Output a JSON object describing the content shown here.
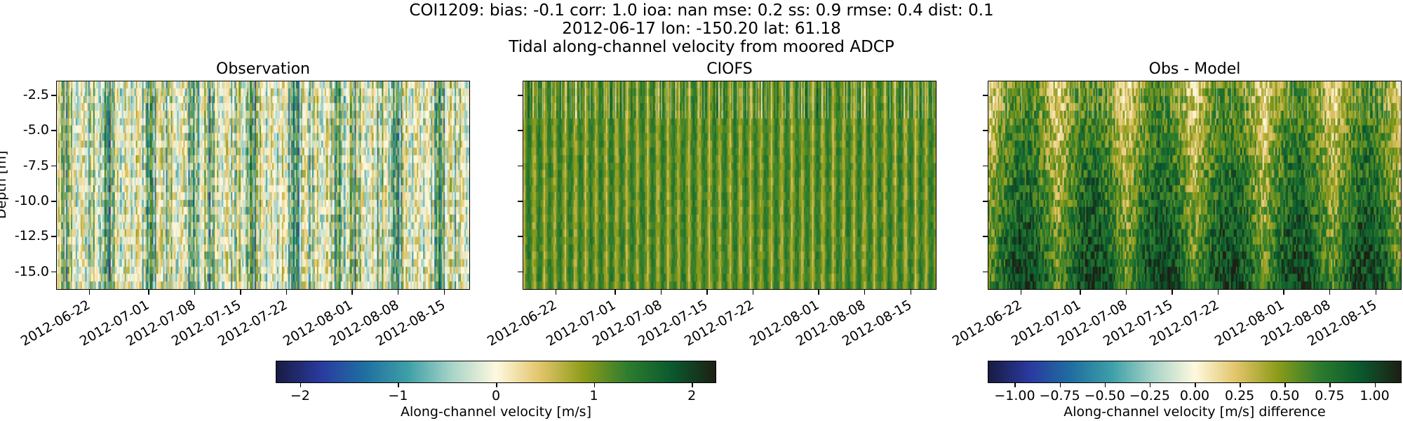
{
  "suptitle": {
    "line1": "COI1209: bias: -0.1  corr: 1.0  ioa: nan  mse: 0.2  ss: 0.9  rmse: 0.4  dist: 0.1",
    "line2": "2012-06-17 lon: -150.20 lat: 61.18",
    "line3": "Tidal along-channel velocity from moored ADCP"
  },
  "colors": {
    "colormap": [
      "#181c43",
      "#2a3aa0",
      "#1f6fa0",
      "#3fa0a8",
      "#a8d4c8",
      "#fff9e0",
      "#e2c56a",
      "#8e9c1a",
      "#2e7d2e",
      "#0a5a2e",
      "#1d2014"
    ]
  },
  "chart_data": [
    {
      "type": "heatmap",
      "title": "Observation",
      "ylabel": "Depth [m]",
      "yticks": [
        "-2.5",
        "-5.0",
        "-7.5",
        "-10.0",
        "-12.5",
        "-15.0"
      ],
      "ylim": [
        -16.3,
        -1.5
      ],
      "xticks": [
        "2012-06-22",
        "2012-07-01",
        "2012-07-08",
        "2012-07-15",
        "2012-07-22",
        "2012-08-01",
        "2012-08-08",
        "2012-08-15"
      ],
      "xlim": [
        "2012-06-17",
        "2012-08-19"
      ],
      "vlim": [
        -2.25,
        2.25
      ],
      "pattern": "tidal-bands"
    },
    {
      "type": "heatmap",
      "title": "CIOFS",
      "yticks": [
        "-2.5",
        "-5.0",
        "-7.5",
        "-10.0",
        "-12.5",
        "-15.0"
      ],
      "ylim": [
        -16.3,
        -1.5
      ],
      "xticks": [
        "2012-06-22",
        "2012-07-01",
        "2012-07-08",
        "2012-07-15",
        "2012-07-22",
        "2012-08-01",
        "2012-08-08",
        "2012-08-15"
      ],
      "xlim": [
        "2012-06-17",
        "2012-08-19"
      ],
      "vlim": [
        -2.25,
        2.25
      ],
      "pattern": "model-bands"
    },
    {
      "type": "heatmap",
      "title": "Obs - Model",
      "yticks": [
        "-2.5",
        "-5.0",
        "-7.5",
        "-10.0",
        "-12.5",
        "-15.0"
      ],
      "ylim": [
        -16.3,
        -1.5
      ],
      "xticks": [
        "2012-06-22",
        "2012-07-01",
        "2012-07-08",
        "2012-07-15",
        "2012-07-22",
        "2012-08-01",
        "2012-08-08",
        "2012-08-15"
      ],
      "xlim": [
        "2012-06-17",
        "2012-08-19"
      ],
      "vlim": [
        -1.15,
        1.15
      ],
      "pattern": "difference-bands"
    }
  ],
  "colorbars": [
    {
      "label": "Along-channel velocity [m/s]",
      "vlim": [
        -2.25,
        2.25
      ],
      "ticks": [
        "−2",
        "−1",
        "0",
        "1",
        "2"
      ],
      "tick_values": [
        -2,
        -1,
        0,
        1,
        2
      ]
    },
    {
      "label": "Along-channel velocity [m/s] difference",
      "vlim": [
        -1.15,
        1.15
      ],
      "ticks": [
        "−1.00",
        "−0.75",
        "−0.50",
        "−0.25",
        "0.00",
        "0.25",
        "0.50",
        "0.75",
        "1.00"
      ],
      "tick_values": [
        -1.0,
        -0.75,
        -0.5,
        -0.25,
        0.0,
        0.25,
        0.5,
        0.75,
        1.0
      ]
    }
  ]
}
